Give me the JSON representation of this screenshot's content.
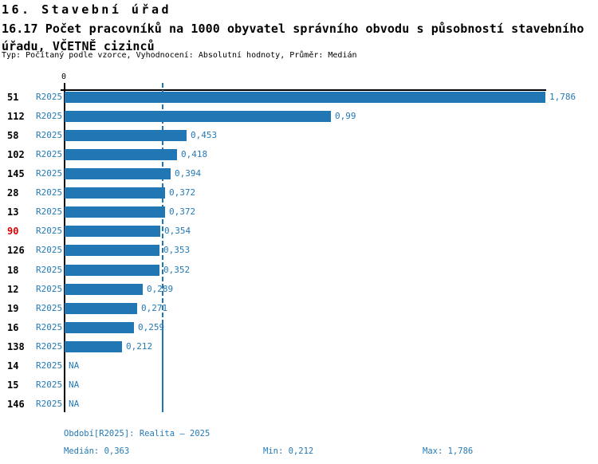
{
  "header": {
    "section_title": "16. Stavební úřad",
    "indicator_title": "16.17 Počet pracovníků na 1000 obyvatel správního obvodu s působností stavebního úřadu, VČETNĚ cizinců",
    "meta": "Typ: Počítaný podle vzorce, Vyhodnocení: Absolutní hodnoty, Průměr: Medián"
  },
  "chart_data": {
    "type": "bar",
    "orientation": "horizontal",
    "axis_zero_label": "0",
    "value_axis_range": [
      0,
      1.786
    ],
    "median_value": 0.363,
    "median_line": "dashed-vertical",
    "grid": false,
    "legend": "none",
    "categories": [
      "51",
      "112",
      "58",
      "102",
      "145",
      "28",
      "13",
      "90",
      "126",
      "18",
      "12",
      "19",
      "16",
      "138",
      "14",
      "15",
      "146"
    ],
    "series_name": "R2025",
    "rows": [
      {
        "id": "51",
        "period": "R2025",
        "value": 1.786,
        "label": "1,786",
        "highlight": false
      },
      {
        "id": "112",
        "period": "R2025",
        "value": 0.99,
        "label": "0,99",
        "highlight": false
      },
      {
        "id": "58",
        "period": "R2025",
        "value": 0.453,
        "label": "0,453",
        "highlight": false
      },
      {
        "id": "102",
        "period": "R2025",
        "value": 0.418,
        "label": "0,418",
        "highlight": false
      },
      {
        "id": "145",
        "period": "R2025",
        "value": 0.394,
        "label": "0,394",
        "highlight": false
      },
      {
        "id": "28",
        "period": "R2025",
        "value": 0.372,
        "label": "0,372",
        "highlight": false
      },
      {
        "id": "13",
        "period": "R2025",
        "value": 0.372,
        "label": "0,372",
        "highlight": false
      },
      {
        "id": "90",
        "period": "R2025",
        "value": 0.354,
        "label": "0,354",
        "highlight": true
      },
      {
        "id": "126",
        "period": "R2025",
        "value": 0.353,
        "label": "0,353",
        "highlight": false
      },
      {
        "id": "18",
        "period": "R2025",
        "value": 0.352,
        "label": "0,352",
        "highlight": false
      },
      {
        "id": "12",
        "period": "R2025",
        "value": 0.289,
        "label": "0,289",
        "highlight": false
      },
      {
        "id": "19",
        "period": "R2025",
        "value": 0.271,
        "label": "0,271",
        "highlight": false
      },
      {
        "id": "16",
        "period": "R2025",
        "value": 0.259,
        "label": "0,259",
        "highlight": false
      },
      {
        "id": "138",
        "period": "R2025",
        "value": 0.212,
        "label": "0,212",
        "highlight": false
      },
      {
        "id": "14",
        "period": "R2025",
        "value": null,
        "label": "NA",
        "highlight": false
      },
      {
        "id": "15",
        "period": "R2025",
        "value": null,
        "label": "NA",
        "highlight": false
      },
      {
        "id": "146",
        "period": "R2025",
        "value": null,
        "label": "NA",
        "highlight": false
      }
    ]
  },
  "footer": {
    "period_info": "Období[R2025]: Realita – 2025",
    "median": "Medián: 0,363",
    "min": "Min: 0,212",
    "max": "Max: 1,786"
  },
  "colors": {
    "bar": "#2077b4",
    "text_blue": "#2479b6",
    "highlight_red": "#e00000",
    "axis_black": "#000000",
    "background": "#ffffff"
  }
}
